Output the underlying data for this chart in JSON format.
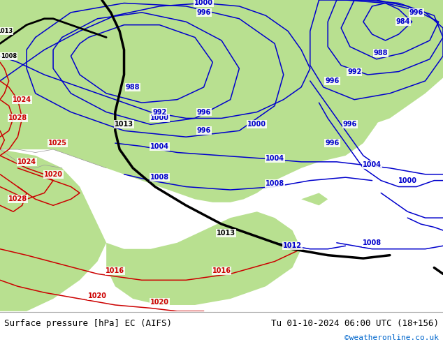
{
  "title_left": "Surface pressure [hPa] EC (AIFS)",
  "title_right": "Tu 01-10-2024 06:00 UTC (18+156)",
  "copyright": "©weatheronline.co.uk",
  "fig_width": 6.34,
  "fig_height": 4.9,
  "dpi": 100,
  "land_color": "#b8e090",
  "sea_color": "#d8d8d8",
  "bg_color": "#e8e8e8",
  "blue": "#0000cc",
  "red": "#cc0000",
  "black": "#000000",
  "white": "#ffffff",
  "copyright_color": "#0066cc",
  "footer_bg": "#ffffff"
}
